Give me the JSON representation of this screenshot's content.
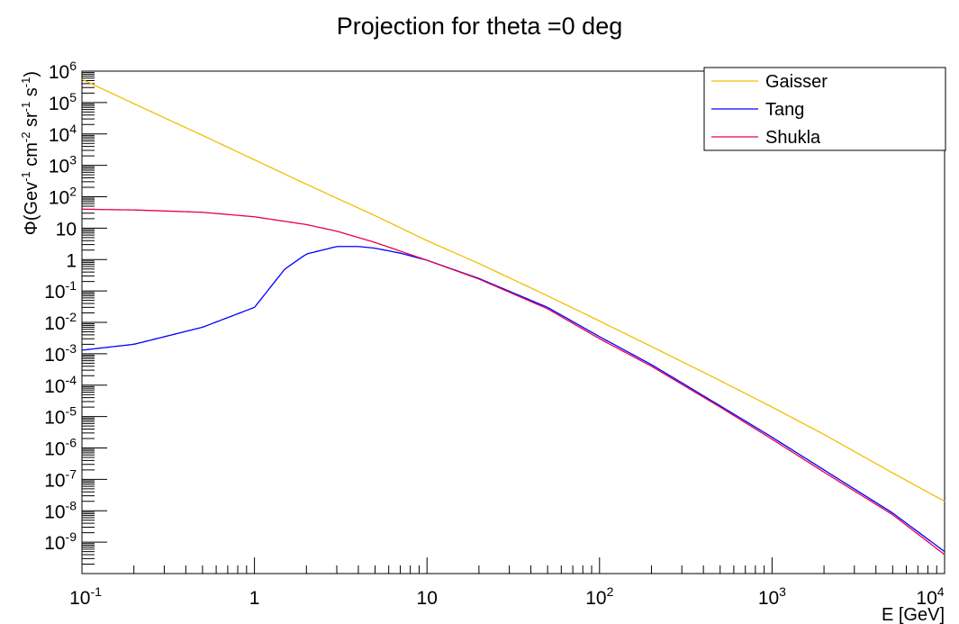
{
  "chart_data": {
    "type": "line",
    "title": "Projection for theta =0 deg",
    "xlabel": "E [GeV]",
    "ylabel": "Φ(Gev^-1 cm^-2 sr^-1 s^-1)",
    "ylabel_parts": [
      "Φ(Gev",
      "-1",
      " cm",
      "-2",
      " sr",
      "-1",
      " s",
      "-1",
      ")"
    ],
    "xscale": "log",
    "yscale": "log",
    "xlim": [
      0.1,
      10000
    ],
    "ylim": [
      1e-10,
      1000000.0
    ],
    "grid": false,
    "legend_position": "top-right",
    "x_ticks": [
      {
        "value": 0.1,
        "base": "10",
        "exp": "-1"
      },
      {
        "value": 1,
        "base": "1",
        "exp": ""
      },
      {
        "value": 10,
        "base": "10",
        "exp": ""
      },
      {
        "value": 100,
        "base": "10",
        "exp": "2"
      },
      {
        "value": 1000,
        "base": "10",
        "exp": "3"
      },
      {
        "value": 10000,
        "base": "10",
        "exp": "4"
      }
    ],
    "y_ticks": [
      {
        "value": 1e-09,
        "base": "10",
        "exp": "-9"
      },
      {
        "value": 1e-08,
        "base": "10",
        "exp": "-8"
      },
      {
        "value": 1e-07,
        "base": "10",
        "exp": "-7"
      },
      {
        "value": 1e-06,
        "base": "10",
        "exp": "-6"
      },
      {
        "value": 1e-05,
        "base": "10",
        "exp": "-5"
      },
      {
        "value": 0.0001,
        "base": "10",
        "exp": "-4"
      },
      {
        "value": 0.001,
        "base": "10",
        "exp": "-3"
      },
      {
        "value": 0.01,
        "base": "10",
        "exp": "-2"
      },
      {
        "value": 0.1,
        "base": "10",
        "exp": "-1"
      },
      {
        "value": 1,
        "base": "1",
        "exp": ""
      },
      {
        "value": 10,
        "base": "10",
        "exp": ""
      },
      {
        "value": 100,
        "base": "10",
        "exp": "2"
      },
      {
        "value": 1000,
        "base": "10",
        "exp": "3"
      },
      {
        "value": 10000,
        "base": "10",
        "exp": "4"
      },
      {
        "value": 100000,
        "base": "10",
        "exp": "5"
      },
      {
        "value": 1000000,
        "base": "10",
        "exp": "6"
      }
    ],
    "series": [
      {
        "name": "Gaisser",
        "color": "#f0c000",
        "x": [
          0.1,
          0.2,
          0.5,
          1,
          2,
          5,
          10,
          20,
          50,
          100,
          200,
          500,
          1000,
          2000,
          5000,
          10000
        ],
        "y": [
          550000,
          92000,
          9000,
          1500,
          250,
          25,
          4,
          0.75,
          0.07,
          0.011,
          0.0017,
          0.00014,
          2e-05,
          2.7e-06,
          1.6e-07,
          2e-08
        ]
      },
      {
        "name": "Tang",
        "color": "#0000ff",
        "x": [
          0.1,
          0.2,
          0.5,
          1,
          1.5,
          2,
          3,
          4,
          5,
          7,
          10,
          20,
          50,
          100,
          200,
          500,
          1000,
          2000,
          5000,
          10000
        ],
        "y": [
          0.0013,
          0.002,
          0.007,
          0.03,
          0.5,
          1.5,
          2.6,
          2.6,
          2.3,
          1.6,
          0.95,
          0.25,
          0.03,
          0.0035,
          0.00045,
          2.2e-05,
          2.2e-06,
          2e-07,
          8.5e-09,
          5e-10
        ]
      },
      {
        "name": "Shukla",
        "color": "#e8004a",
        "x": [
          0.1,
          0.2,
          0.5,
          1,
          2,
          3,
          5,
          10,
          20,
          50,
          100,
          200,
          500,
          1000,
          2000,
          5000,
          10000
        ],
        "y": [
          40,
          38,
          32,
          23,
          13,
          8,
          3.5,
          0.95,
          0.24,
          0.027,
          0.003,
          0.0004,
          2e-05,
          1.9e-06,
          1.7e-07,
          7.5e-09,
          4e-10
        ]
      }
    ]
  }
}
